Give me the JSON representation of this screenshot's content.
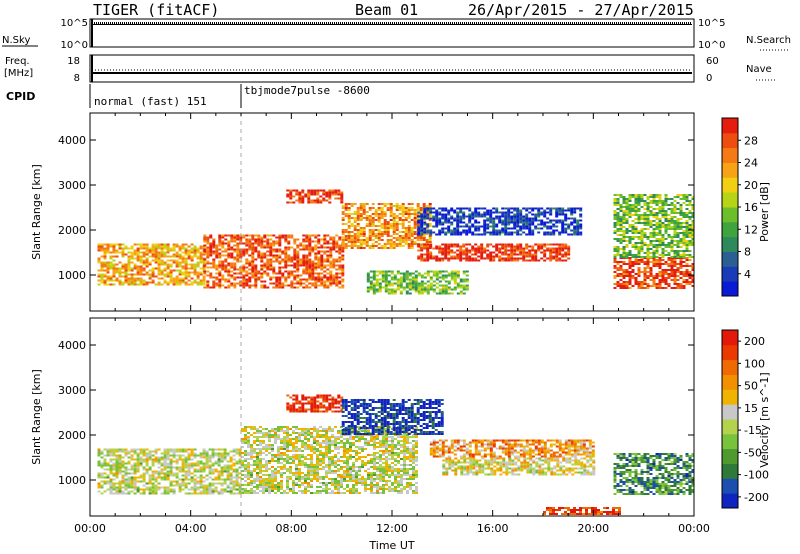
{
  "header": {
    "station": "TIGER (fitACF)",
    "beam": "Beam 01",
    "date_range": "26/Apr/2015 - 27/Apr/2015"
  },
  "status_panels": {
    "nsky_label": "N.Sky",
    "nsky_ticks": [
      "10^5",
      "10^0"
    ],
    "nsearch_label": "N.Search",
    "nsearch_ticks": [
      "10^5",
      "10^0"
    ],
    "freq_label_line1": "Freq.",
    "freq_label_line2": "[MHz]",
    "freq_ticks": [
      "18",
      "8"
    ],
    "nave_label": "Nave",
    "nave_ticks": [
      "60",
      "0"
    ],
    "cpid_label": "CPID",
    "cpid_segments": [
      {
        "label": "normal (fast) 151",
        "start_hour": 0,
        "end_hour": 6
      },
      {
        "label": "tbjmode7pulse -8600",
        "start_hour": 6,
        "end_hour": 24
      }
    ]
  },
  "chart_data": [
    {
      "type": "heatmap",
      "title": "",
      "xlabel": "",
      "ylabel": "Slant Range [km]",
      "xlim": [
        0,
        24
      ],
      "ylim": [
        200,
        4600
      ],
      "yticks": [
        1000,
        2000,
        3000,
        4000
      ],
      "colorbar": {
        "label": "Power [dB]",
        "range": [
          0,
          32
        ],
        "ticks": [
          "4",
          "8",
          "12",
          "16",
          "20",
          "24",
          "28"
        ],
        "colors": [
          "#0a1bd6",
          "#1a3bb8",
          "#2b5f93",
          "#2e8a5c",
          "#3fa33e",
          "#6cbf2a",
          "#b7d417",
          "#f1cf12",
          "#f8a215",
          "#f57a13",
          "#ee4d10",
          "#e51d0e"
        ]
      },
      "regions": [
        {
          "x": [
            0.3,
            4.5
          ],
          "y": [
            800,
            1700
          ],
          "level": 0.7
        },
        {
          "x": [
            4.5,
            10.0
          ],
          "y": [
            700,
            1900
          ],
          "level": 0.85
        },
        {
          "x": [
            7.8,
            10.0
          ],
          "y": [
            2600,
            2900
          ],
          "level": 0.92
        },
        {
          "x": [
            10.0,
            13.5
          ],
          "y": [
            1600,
            2600
          ],
          "level": 0.75
        },
        {
          "x": [
            13.0,
            19.5
          ],
          "y": [
            1900,
            2500
          ],
          "level": 0.1
        },
        {
          "x": [
            13.0,
            19.0
          ],
          "y": [
            1300,
            1700
          ],
          "level": 0.95
        },
        {
          "x": [
            11.0,
            15.0
          ],
          "y": [
            600,
            1100
          ],
          "level": 0.45
        },
        {
          "x": [
            20.8,
            24.0
          ],
          "y": [
            700,
            1400
          ],
          "level": 0.9
        },
        {
          "x": [
            20.8,
            24.0
          ],
          "y": [
            1400,
            2800
          ],
          "level": 0.45
        }
      ]
    },
    {
      "type": "heatmap",
      "title": "",
      "xlabel": "Time UT",
      "ylabel": "Slant Range [km]",
      "xlim": [
        0,
        24
      ],
      "ylim": [
        200,
        4600
      ],
      "xticks": [
        "00:00",
        "04:00",
        "08:00",
        "12:00",
        "16:00",
        "20:00",
        "00:00"
      ],
      "yticks": [
        1000,
        2000,
        3000,
        4000
      ],
      "colorbar": {
        "label": "Velocity [m s^-1]",
        "ticks": [
          "200",
          "100",
          "50",
          "15",
          "-15",
          "-50",
          "-100",
          "-200"
        ],
        "colors": [
          "#1024c0",
          "#1a4fb0",
          "#2f7a3a",
          "#4f9a2f",
          "#79c23b",
          "#b4d24e",
          "#c8c8c8",
          "#f0b400",
          "#f29000",
          "#ef6a00",
          "#ea3a00",
          "#e31a0a"
        ]
      },
      "regions": [
        {
          "x": [
            0.3,
            6.0
          ],
          "y": [
            700,
            1700
          ],
          "level": 0.5
        },
        {
          "x": [
            6.0,
            13.0
          ],
          "y": [
            700,
            2200
          ],
          "level": 0.5
        },
        {
          "x": [
            7.8,
            10.0
          ],
          "y": [
            2500,
            2900
          ],
          "level": 0.95
        },
        {
          "x": [
            10.0,
            14.0
          ],
          "y": [
            2000,
            2800
          ],
          "level": 0.05
        },
        {
          "x": [
            13.5,
            20.0
          ],
          "y": [
            1500,
            1900
          ],
          "level": 0.7
        },
        {
          "x": [
            14.0,
            20.0
          ],
          "y": [
            1100,
            1500
          ],
          "level": 0.55
        },
        {
          "x": [
            20.8,
            24.0
          ],
          "y": [
            700,
            1600
          ],
          "level": 0.25
        },
        {
          "x": [
            18.0,
            21.0
          ],
          "y": [
            250,
            400
          ],
          "level": 0.9
        }
      ]
    }
  ]
}
